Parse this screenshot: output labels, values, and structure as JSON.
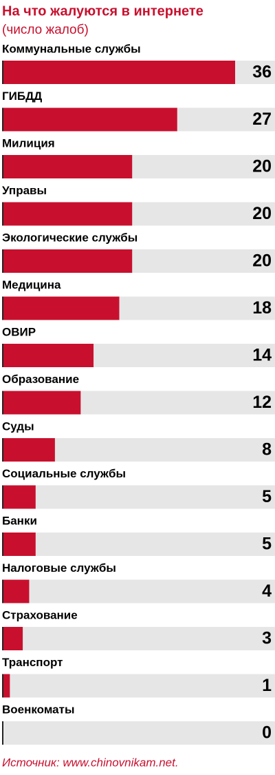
{
  "chart_data": {
    "type": "bar",
    "title": "На что жалуются в интернете",
    "subtitle": "(число жалоб)",
    "categories": [
      "Коммунальные службы",
      "ГИБДД",
      "Милиция",
      "Управы",
      "Экологические службы",
      "Медицина",
      "ОВИР",
      "Образование",
      "Суды",
      "Социальные службы",
      "Банки",
      "Налоговые службы",
      "Страхование",
      "Транспорт",
      "Военкоматы"
    ],
    "values": [
      36,
      27,
      20,
      20,
      20,
      18,
      14,
      12,
      8,
      5,
      5,
      4,
      3,
      1,
      0
    ],
    "color": "#c8102e",
    "source": "Источник: www.chinovnikam.net."
  }
}
